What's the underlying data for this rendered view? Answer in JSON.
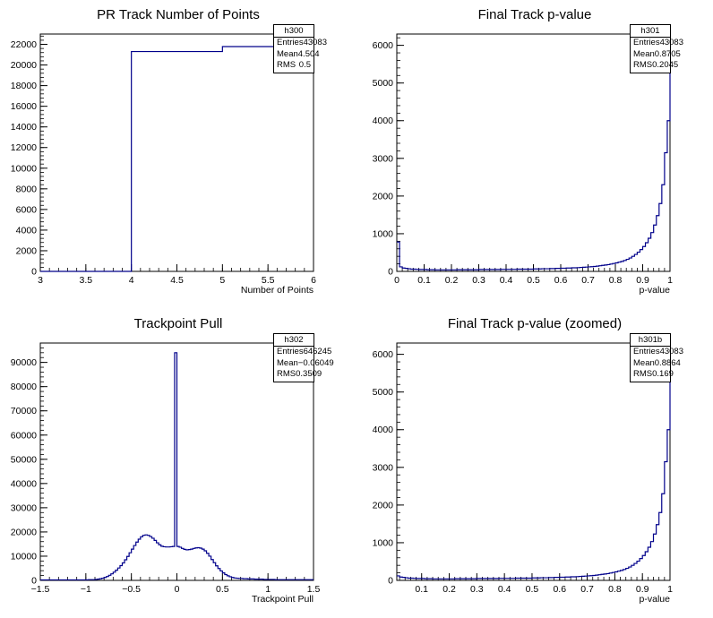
{
  "panels": [
    {
      "title": "PR Track Number of Points",
      "stats": {
        "name": "h300",
        "entries_label": "Entries",
        "entries": "43083",
        "mean_label": "Mean",
        "mean": "4.504",
        "rms_label": "RMS",
        "rms": "0.5"
      }
    },
    {
      "title": "Final Track p-value",
      "stats": {
        "name": "h301",
        "entries_label": "Entries",
        "entries": "43083",
        "mean_label": "Mean",
        "mean": "0.8705",
        "rms_label": "RMS",
        "rms": "0.2045"
      }
    },
    {
      "title": "Trackpoint Pull",
      "stats": {
        "name": "h302",
        "entries_label": "Entries",
        "entries": "646245",
        "mean_label": "Mean",
        "mean": "−0.06049",
        "rms_label": "RMS",
        "rms": "0.3509"
      }
    },
    {
      "title": "Final Track p-value (zoomed)",
      "stats": {
        "name": "h301b",
        "entries_label": "Entries",
        "entries": "43083",
        "mean_label": "Mean",
        "mean": "0.8864",
        "rms_label": "RMS",
        "rms": "0.169"
      }
    }
  ],
  "chart_data": [
    {
      "type": "histogram",
      "title": "PR Track Number of Points",
      "xlabel": "Number of Points",
      "ylabel": "",
      "xlim": [
        3,
        6
      ],
      "ylim": [
        0,
        23000
      ],
      "line_color": "#00008b",
      "xticks": [
        "3",
        "3.5",
        "4",
        "4.5",
        "5",
        "5.5",
        "6"
      ],
      "yticks": [
        "0",
        "2000",
        "4000",
        "6000",
        "8000",
        "10000",
        "12000",
        "14000",
        "16000",
        "18000",
        "20000",
        "22000"
      ],
      "bins": [
        [
          3,
          4,
          0
        ],
        [
          4,
          5,
          21300
        ],
        [
          5,
          6,
          21783
        ]
      ]
    },
    {
      "type": "histogram",
      "title": "Final Track p-value",
      "xlabel": "p-value",
      "ylabel": "",
      "xlim": [
        0,
        1
      ],
      "ylim": [
        0,
        6300
      ],
      "line_color": "#00008b",
      "xticks": [
        "0",
        "0.1",
        "0.2",
        "0.3",
        "0.4",
        "0.5",
        "0.6",
        "0.7",
        "0.8",
        "0.9",
        "1"
      ],
      "yticks": [
        "0",
        "1000",
        "2000",
        "3000",
        "4000",
        "5000",
        "6000"
      ],
      "bin_edges_start": 0,
      "bin_width": 0.01,
      "counts": [
        780,
        120,
        90,
        80,
        70,
        60,
        60,
        55,
        50,
        50,
        50,
        45,
        45,
        45,
        40,
        40,
        40,
        40,
        40,
        40,
        40,
        40,
        45,
        45,
        45,
        45,
        45,
        45,
        45,
        45,
        50,
        50,
        50,
        50,
        50,
        50,
        50,
        50,
        55,
        55,
        55,
        55,
        55,
        55,
        60,
        60,
        60,
        60,
        60,
        60,
        65,
        65,
        65,
        70,
        70,
        70,
        75,
        75,
        80,
        80,
        85,
        85,
        90,
        90,
        95,
        95,
        100,
        105,
        110,
        115,
        120,
        125,
        130,
        140,
        150,
        160,
        170,
        180,
        195,
        210,
        225,
        245,
        265,
        290,
        320,
        355,
        400,
        450,
        510,
        580,
        660,
        760,
        880,
        1030,
        1230,
        1480,
        1800,
        2300,
        3150,
        4000,
        6000
      ]
    },
    {
      "type": "histogram",
      "title": "Trackpoint Pull",
      "xlabel": "Trackpoint Pull",
      "ylabel": "",
      "xlim": [
        -1.5,
        1.5
      ],
      "ylim": [
        0,
        98000
      ],
      "line_color": "#00008b",
      "xticks": [
        "−1.5",
        "−1",
        "−0.5",
        "0",
        "0.5",
        "1",
        "1.5"
      ],
      "yticks": [
        "0",
        "10000",
        "20000",
        "30000",
        "40000",
        "50000",
        "60000",
        "70000",
        "80000",
        "90000"
      ],
      "bin_edges_start": -1.5,
      "bin_width": 0.025,
      "counts": [
        200,
        200,
        200,
        200,
        200,
        200,
        200,
        200,
        200,
        200,
        200,
        200,
        200,
        200,
        200,
        200,
        200,
        200,
        200,
        200,
        200,
        300,
        300,
        300,
        400,
        500,
        700,
        900,
        1200,
        1600,
        2100,
        2700,
        3400,
        4200,
        5100,
        6100,
        7200,
        8500,
        9900,
        11400,
        12900,
        14400,
        15800,
        17000,
        18000,
        18600,
        18800,
        18600,
        18100,
        17400,
        16500,
        15500,
        14700,
        14100,
        13900,
        13800,
        13800,
        13900,
        14000,
        94000,
        14000,
        13700,
        13200,
        12800,
        12600,
        12700,
        12900,
        13200,
        13400,
        13500,
        13300,
        12900,
        12200,
        11200,
        10000,
        8600,
        7300,
        6000,
        4900,
        3900,
        3100,
        2400,
        1900,
        1500,
        1200,
        1000,
        900,
        800,
        800,
        700,
        700,
        600,
        600,
        600,
        500,
        500,
        500,
        500,
        400,
        400,
        400,
        400,
        400,
        300,
        300,
        300,
        300,
        300,
        300,
        300,
        300,
        300,
        300,
        300,
        300,
        300,
        300,
        300,
        300,
        300
      ]
    },
    {
      "type": "histogram",
      "title": "Final Track p-value (zoomed)",
      "xlabel": "p-value",
      "ylabel": "",
      "xlim": [
        0.01,
        1
      ],
      "ylim": [
        0,
        6300
      ],
      "line_color": "#00008b",
      "xticks": [
        "0.1",
        "0.2",
        "0.3",
        "0.4",
        "0.5",
        "0.6",
        "0.7",
        "0.8",
        "0.9",
        "1"
      ],
      "yticks": [
        "0",
        "1000",
        "2000",
        "3000",
        "4000",
        "5000",
        "6000"
      ],
      "bin_edges_start": 0.01,
      "bin_width": 0.01,
      "counts": [
        120,
        90,
        80,
        70,
        60,
        60,
        55,
        50,
        50,
        50,
        45,
        45,
        45,
        40,
        40,
        40,
        40,
        40,
        40,
        40,
        40,
        45,
        45,
        45,
        45,
        45,
        45,
        45,
        45,
        50,
        50,
        50,
        50,
        50,
        50,
        50,
        50,
        55,
        55,
        55,
        55,
        55,
        55,
        60,
        60,
        60,
        60,
        60,
        60,
        65,
        65,
        65,
        70,
        70,
        70,
        75,
        75,
        80,
        80,
        85,
        85,
        90,
        90,
        95,
        95,
        100,
        105,
        110,
        115,
        120,
        125,
        130,
        140,
        150,
        160,
        170,
        180,
        195,
        210,
        225,
        245,
        265,
        290,
        320,
        355,
        400,
        450,
        510,
        580,
        660,
        760,
        880,
        1030,
        1230,
        1480,
        1800,
        2300,
        3150,
        4000,
        6000
      ]
    }
  ]
}
